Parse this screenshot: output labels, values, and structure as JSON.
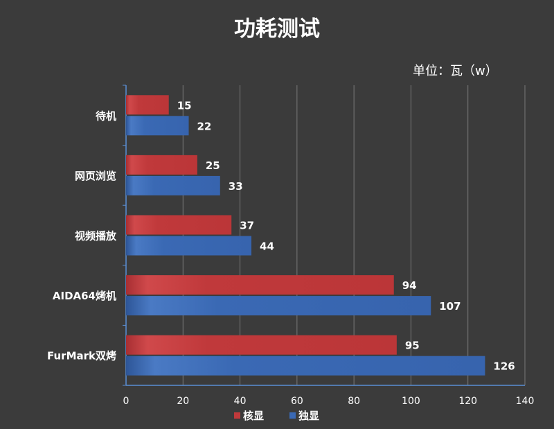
{
  "chart_data": {
    "type": "bar",
    "orientation": "horizontal",
    "title": "功耗测试",
    "unit_label": "单位：瓦（w）",
    "categories": [
      "待机",
      "网页浏览",
      "视频播放",
      "AIDA64烤机",
      "FurMark双烤"
    ],
    "series": [
      {
        "name": "核显",
        "values": [
          15,
          25,
          37,
          94,
          95
        ],
        "color": "#c0393b"
      },
      {
        "name": "独显",
        "values": [
          22,
          33,
          44,
          107,
          126
        ],
        "color": "#3a69b4"
      }
    ],
    "xlim": [
      0,
      140
    ],
    "xticks": [
      0,
      20,
      40,
      60,
      80,
      100,
      120,
      140
    ],
    "grid": true,
    "legend_position": "bottom",
    "data_labels": true
  },
  "colors": {
    "background": "#3b3b3b",
    "grid": "#7a7a7a",
    "axis": "#5b8fd6",
    "text": "#ffffff"
  }
}
